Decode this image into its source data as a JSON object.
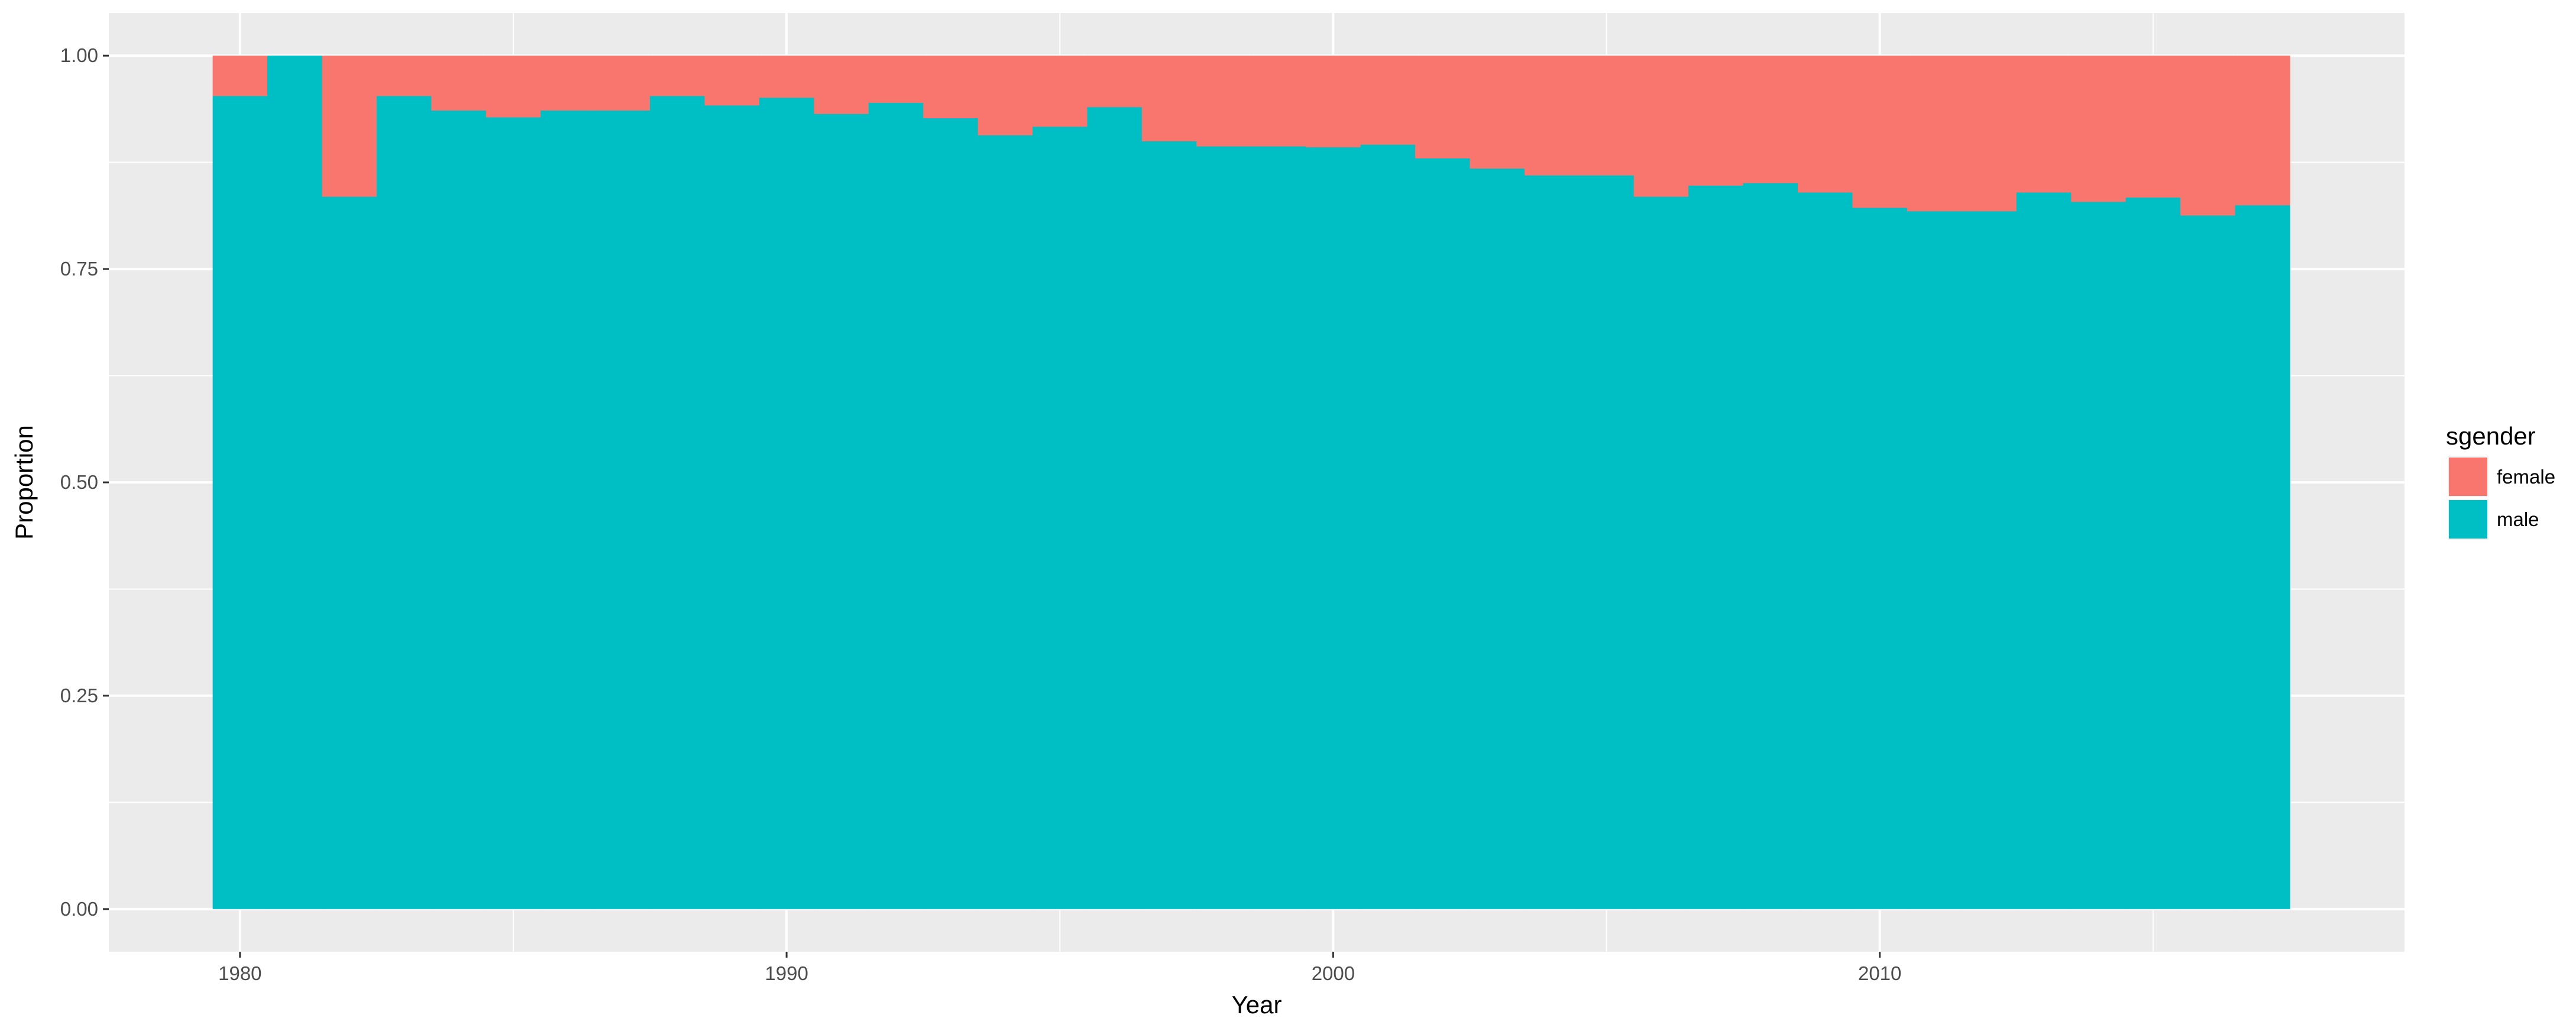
{
  "chart_data": {
    "type": "bar",
    "stacked": true,
    "xlabel": "Year",
    "ylabel": "Proportion",
    "xlim": [
      1977.6,
      2019.6
    ],
    "ylim": [
      -0.05,
      1.05
    ],
    "x_ticks": [
      1980,
      1990,
      2000,
      2010
    ],
    "x_tick_labels": [
      "1980",
      "1990",
      "2000",
      "2010"
    ],
    "y_ticks": [
      0,
      0.25,
      0.5,
      0.75,
      1.0
    ],
    "y_tick_labels": [
      "0.00",
      "0.25",
      "0.50",
      "0.75",
      "1.00"
    ],
    "x": [
      1980,
      1981,
      1982,
      1983,
      1984,
      1985,
      1986,
      1987,
      1988,
      1989,
      1990,
      1991,
      1992,
      1993,
      1994,
      1995,
      1996,
      1997,
      1998,
      1999,
      2000,
      2001,
      2002,
      2003,
      2004,
      2005,
      2006,
      2007,
      2008,
      2009,
      2010,
      2011,
      2012,
      2013,
      2014,
      2015,
      2016,
      2017
    ],
    "series": [
      {
        "name": "male",
        "values": [
          0.953,
          1.0,
          0.835,
          0.953,
          0.936,
          0.928,
          0.936,
          0.936,
          0.953,
          0.942,
          0.951,
          0.932,
          0.945,
          0.927,
          0.907,
          0.917,
          0.94,
          0.9,
          0.894,
          0.894,
          0.893,
          0.896,
          0.88,
          0.868,
          0.86,
          0.86,
          0.835,
          0.848,
          0.851,
          0.84,
          0.822,
          0.818,
          0.818,
          0.84,
          0.829,
          0.834,
          0.813,
          0.825
        ]
      },
      {
        "name": "female",
        "values": [
          0.047,
          0.0,
          0.165,
          0.047,
          0.064,
          0.072,
          0.064,
          0.064,
          0.047,
          0.058,
          0.049,
          0.068,
          0.055,
          0.073,
          0.093,
          0.083,
          0.06,
          0.1,
          0.106,
          0.106,
          0.107,
          0.104,
          0.12,
          0.132,
          0.14,
          0.14,
          0.165,
          0.152,
          0.149,
          0.16,
          0.178,
          0.182,
          0.182,
          0.16,
          0.171,
          0.166,
          0.187,
          0.175
        ]
      }
    ],
    "legend": {
      "title": "sgender",
      "position": "right",
      "entries": [
        {
          "label": "female",
          "color": "#F8766D"
        },
        {
          "label": "male",
          "color": "#00BFC4"
        }
      ]
    },
    "colors": {
      "female": "#F8766D",
      "male": "#00BFC4",
      "panel": "#EBEBEB",
      "grid": "#FFFFFF"
    },
    "grid": true
  }
}
